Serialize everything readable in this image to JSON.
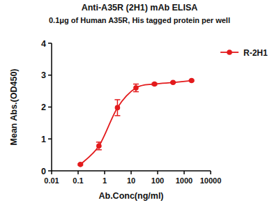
{
  "chart_data": {
    "type": "line",
    "title": "Anti-A35R (2H1) mAb ELISA",
    "subtitle": "0.1μg of Human A35R, His tagged protein per well",
    "x_label": "Ab.Conc(ng/ml)",
    "y_label": "Mean Abs.(OD450)",
    "x": [
      0.122,
      0.61,
      3.05,
      15.2,
      76,
      381,
      1905
    ],
    "series": [
      {
        "name": "R-2H1",
        "color": "#e31a1c",
        "marker": "circle",
        "line_style": "solid",
        "values": [
          0.2,
          0.78,
          1.98,
          2.6,
          2.72,
          2.77,
          2.83
        ],
        "errors": [
          0.02,
          0.12,
          0.25,
          0.12,
          0.03,
          0.02,
          0.02
        ]
      }
    ],
    "log": "x",
    "xlim": [
      0.01,
      10000
    ],
    "xticks": [
      0.01,
      0.1,
      1,
      10,
      100,
      1000,
      10000
    ],
    "ylim": [
      0,
      4
    ],
    "yticks": [
      0,
      1,
      2,
      3,
      4
    ],
    "grid": false,
    "legend": "top-right"
  }
}
